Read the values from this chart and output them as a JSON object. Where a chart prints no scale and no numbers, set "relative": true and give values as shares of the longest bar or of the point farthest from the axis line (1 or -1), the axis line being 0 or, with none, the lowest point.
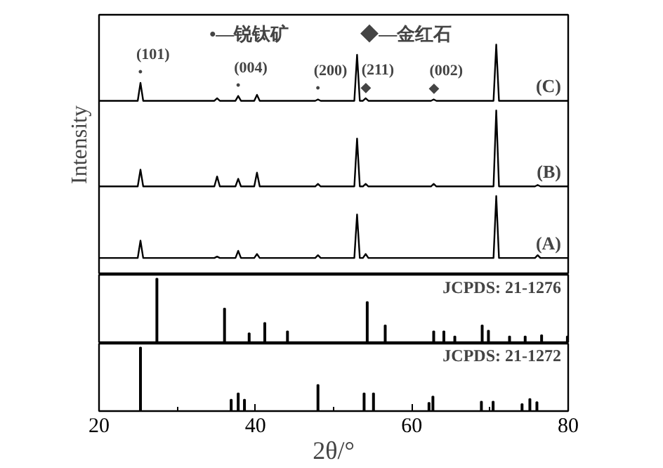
{
  "chart_data": [
    {
      "type": "line",
      "relative": true,
      "ylabel": "Intensity",
      "xlim": [
        20,
        80
      ],
      "tick_labels": false,
      "x": [
        20,
        24.95,
        25.3,
        25.65,
        34.75,
        35.1,
        35.45,
        37.45,
        37.8,
        38.15,
        39.85,
        40.2,
        40.55,
        47.65,
        48.0,
        48.35,
        52.65,
        53.0,
        53.35,
        53.75,
        54.1,
        54.45,
        62.45,
        62.8,
        63.15,
        70.45,
        70.8,
        71.15,
        75.75,
        76.1,
        76.45,
        80
      ],
      "series": [
        {
          "name": "(C)",
          "color": "#000000",
          "values": [
            0.756,
            0.756,
            0.834,
            0.756,
            0.756,
            0.767,
            0.756,
            0.756,
            0.777,
            0.756,
            0.756,
            0.782,
            0.756,
            0.756,
            0.762,
            0.756,
            0.756,
            0.956,
            0.756,
            0.756,
            0.767,
            0.756,
            0.756,
            0.762,
            0.756,
            0.756,
            1.0,
            0.756,
            0.756,
            0.756,
            0.756,
            0.756
          ]
        },
        {
          "name": "(B)",
          "color": "#000000",
          "values": [
            0.384,
            0.384,
            0.457,
            0.384,
            0.384,
            0.427,
            0.384,
            0.384,
            0.417,
            0.384,
            0.384,
            0.444,
            0.384,
            0.384,
            0.395,
            0.384,
            0.384,
            0.592,
            0.384,
            0.384,
            0.395,
            0.384,
            0.384,
            0.395,
            0.384,
            0.384,
            0.714,
            0.384,
            0.384,
            0.39,
            0.384,
            0.384
          ]
        },
        {
          "name": "(A)",
          "color": "#000000",
          "values": [
            0.073,
            0.073,
            0.148,
            0.073,
            0.073,
            0.079,
            0.073,
            0.073,
            0.104,
            0.073,
            0.073,
            0.09,
            0.073,
            0.073,
            0.085,
            0.073,
            0.073,
            0.262,
            0.073,
            0.073,
            0.09,
            0.073,
            0.073,
            0.073,
            0.073,
            0.073,
            0.342,
            0.073,
            0.073,
            0.085,
            0.073,
            0.073
          ]
        }
      ],
      "annotations": [
        "•—锐钛矿",
        "◆—金红石",
        {
          "text": "•",
          "x": 25.3,
          "y": 0.834
        },
        {
          "text": "(101)",
          "x": 25.3,
          "y": 0.834
        },
        {
          "text": "•",
          "x": 37.8,
          "y": 0.777
        },
        {
          "text": "(004)",
          "x": 37.8,
          "y": 0.777
        },
        {
          "text": "•",
          "x": 48.0,
          "y": 0.762
        },
        {
          "text": "(200)",
          "x": 48.0,
          "y": 0.762
        },
        {
          "text": "◆",
          "x": 54.1,
          "y": 0.767
        },
        {
          "text": "(211)",
          "x": 54.1,
          "y": 0.767
        },
        {
          "text": "◆",
          "x": 62.8,
          "y": 0.762
        },
        {
          "text": "(002)",
          "x": 62.8,
          "y": 0.762
        }
      ]
    },
    {
      "type": "bar",
      "relative": true,
      "xlim": [
        20,
        80
      ],
      "tick_labels": false,
      "color": "#000000",
      "x": [
        27.4,
        36.05,
        39.2,
        41.2,
        44.1,
        54.3,
        56.6,
        62.8,
        64.1,
        65.5,
        69.0,
        69.8,
        72.5,
        74.5,
        76.6,
        79.9
      ],
      "values": [
        1.0,
        0.54,
        0.16,
        0.32,
        0.19,
        0.64,
        0.28,
        0.19,
        0.19,
        0.11,
        0.28,
        0.2,
        0.11,
        0.11,
        0.13,
        0.11
      ],
      "annotations": [
        "JCPDS: 21-1276"
      ]
    },
    {
      "type": "bar",
      "relative": true,
      "xlim": [
        20,
        80
      ],
      "xticks": [
        20,
        40,
        60,
        80
      ],
      "tick_labels": "x",
      "xlabel": "2θ/°",
      "color": "#000000",
      "x": [
        25.3,
        36.9,
        37.8,
        38.6,
        48.0,
        53.9,
        55.1,
        62.2,
        62.7,
        68.9,
        70.4,
        74.1,
        75.1,
        76.0
      ],
      "values": [
        1.0,
        0.18,
        0.28,
        0.18,
        0.41,
        0.28,
        0.28,
        0.13,
        0.23,
        0.15,
        0.15,
        0.11,
        0.19,
        0.14
      ],
      "annotations": [
        "JCPDS: 21-1272"
      ]
    }
  ]
}
